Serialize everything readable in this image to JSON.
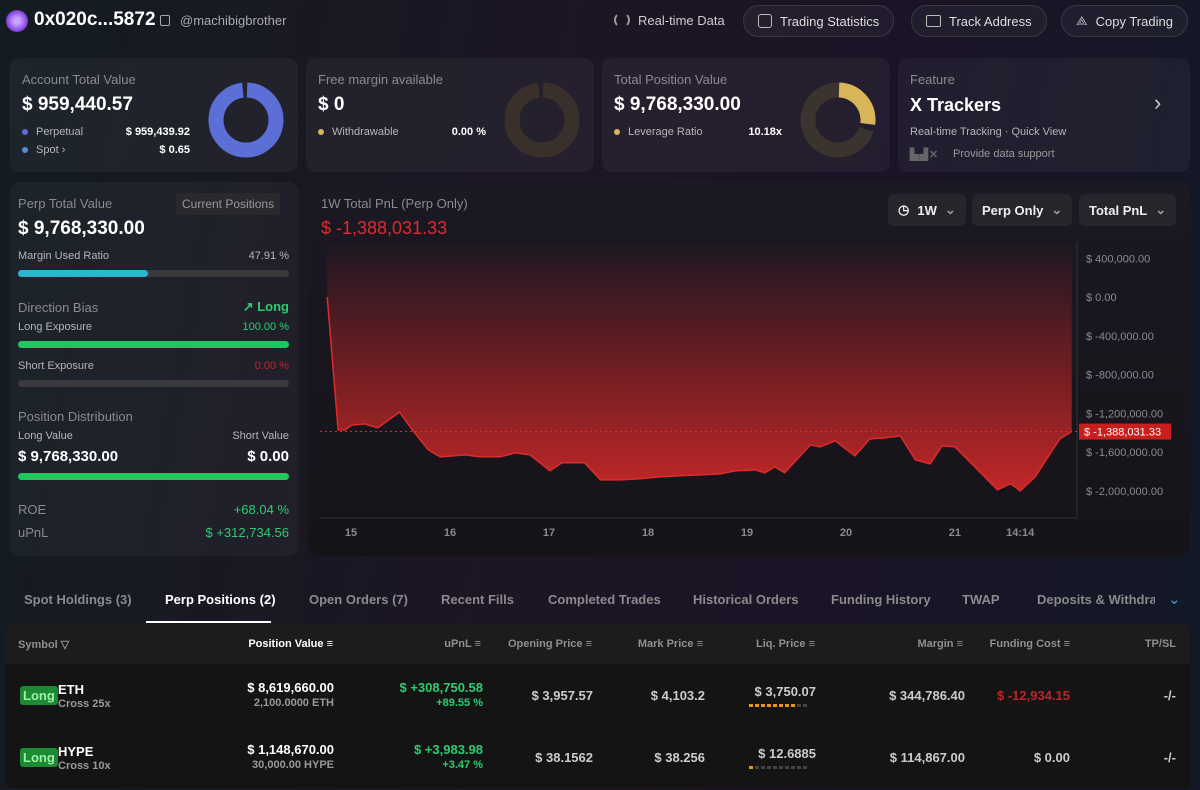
{
  "header": {
    "address": "0x020c...5872",
    "handle": "@machibigbrother",
    "buttons": [
      "Real-time Data",
      "Trading Statistics",
      "Track Address",
      "Copy Trading"
    ]
  },
  "cards": {
    "account": {
      "title": "Account Total Value",
      "value": "$ 959,440.57",
      "rows": [
        {
          "label": "Perpetual",
          "value": "$ 959,439.92",
          "color": "#5b6fd6"
        },
        {
          "label": "Spot",
          "value": "$ 0.65",
          "color": "#4f8fd6"
        }
      ]
    },
    "free_margin": {
      "title": "Free margin available",
      "value": "$ 0",
      "row_label": "Withdrawable",
      "row_value": "0.00 %",
      "color": "#d9b55a",
      "percent": 0
    },
    "position": {
      "title": "Total Position Value",
      "value": "$ 9,768,330.00",
      "row_label": "Leverage Ratio",
      "row_value": "10.18x",
      "color": "#d9b55a"
    },
    "feature": {
      "title": "Feature",
      "name": "X Trackers",
      "desc": "Real-time Tracking · Quick View",
      "support": "Provide data support",
      "logo": "bbx"
    }
  },
  "perp": {
    "title": "Perp Total Value",
    "button": "Current Positions",
    "value": "$ 9,768,330.00",
    "margin_label": "Margin Used Ratio",
    "margin_value": "47.91 %",
    "margin_pct": 47.91,
    "bias_label": "Direction Bias",
    "bias_value": "Long",
    "long_label": "Long Exposure",
    "long_value": "100.00 %",
    "long_pct": 100,
    "short_label": "Short Exposure",
    "short_value": "0.00 %",
    "short_pct": 0,
    "dist_label": "Position Distribution",
    "long_val_label": "Long Value",
    "short_val_label": "Short Value",
    "long_val": "$ 9,768,330.00",
    "short_val": "$ 0.00",
    "dist_long_pct": 100,
    "roe_label": "ROE",
    "roe": "+68.04 %",
    "upnl_label": "uPnL",
    "upnl": "$ +312,734.56"
  },
  "chart_panel": {
    "title": "1W Total PnL (Perp Only)",
    "value": "$ -1,388,031.33",
    "selects": [
      "1W",
      "Perp Only",
      "Total PnL"
    ]
  },
  "chart_data": {
    "type": "area",
    "color": "#e02a2a",
    "ylim": [
      -2250000,
      590000
    ],
    "xlim": [
      14.7,
      22.3
    ],
    "y_ticks": [
      {
        "v": 400000,
        "label": "$ 400,000.00"
      },
      {
        "v": 0,
        "label": "$ 0.00"
      },
      {
        "v": -400000,
        "label": "$ -400,000.00"
      },
      {
        "v": -800000,
        "label": "$ -800,000.00"
      },
      {
        "v": -1200000,
        "label": "$ -1,200,000.00"
      },
      {
        "v": -1600000,
        "label": "$ -1,600,000.00"
      },
      {
        "v": -2000000,
        "label": "$ -2,000,000.00"
      }
    ],
    "x_ticks": [
      {
        "v": 15,
        "label": "15"
      },
      {
        "v": 16,
        "label": "16"
      },
      {
        "v": 17,
        "label": "17"
      },
      {
        "v": 18,
        "label": "18"
      },
      {
        "v": 19,
        "label": "19"
      },
      {
        "v": 20,
        "label": "20"
      },
      {
        "v": 21.1,
        "label": "21"
      },
      {
        "v": 21.76,
        "label": "14:14"
      }
    ],
    "last_label": "$ -1,388,031.33",
    "last_value": -1388031.33,
    "x": [
      14.76,
      14.87,
      14.94,
      15.01,
      15.14,
      15.27,
      15.49,
      15.62,
      15.78,
      15.9,
      16.15,
      16.3,
      16.51,
      16.66,
      16.81,
      17.01,
      17.13,
      17.36,
      17.52,
      17.72,
      17.92,
      18.12,
      18.32,
      18.53,
      18.73,
      18.88,
      19.08,
      19.18,
      19.28,
      19.38,
      19.64,
      19.74,
      19.89,
      20.09,
      20.24,
      20.39,
      20.55,
      20.7,
      20.85,
      20.97,
      21.1,
      21.53,
      21.66,
      21.76,
      21.91,
      22.16,
      22.28
    ],
    "y": [
      0,
      -1371000,
      -1371000,
      -1320000,
      -1309000,
      -1350000,
      -1186000,
      -1371000,
      -1577000,
      -1649000,
      -1629000,
      -1649000,
      -1649000,
      -1608000,
      -1629000,
      -1794000,
      -1711000,
      -1711000,
      -1887000,
      -1887000,
      -1876000,
      -1856000,
      -1845000,
      -1835000,
      -1825000,
      -1794000,
      -1784000,
      -1814000,
      -1753000,
      -1814000,
      -1526000,
      -1546000,
      -1484000,
      -1639000,
      -1464000,
      -1454000,
      -1433000,
      -1680000,
      -1722000,
      -1536000,
      -1546000,
      -1990000,
      -1928000,
      -2000000,
      -1856000,
      -1464000,
      -1388031
    ]
  },
  "tabs": [
    "Spot Holdings (3)",
    "Perp Positions (2)",
    "Open Orders (7)",
    "Recent Fills",
    "Completed Trades",
    "Historical Orders",
    "Funding History",
    "TWAP",
    "Deposits & Withdraw"
  ],
  "active_tab": 1,
  "table": {
    "headers": [
      "Symbol",
      "Position Value",
      "uPnL",
      "Opening Price",
      "Mark Price",
      "Liq. Price",
      "Margin",
      "Funding Cost",
      "TP/SL"
    ],
    "rows": [
      {
        "side": "Long",
        "symbol": "ETH",
        "mode": "Cross 25x",
        "value": "$ 8,619,660.00",
        "size": "2,100.0000 ETH",
        "upnl": "$ +308,750.58",
        "upnl_pct": "+89.55 %",
        "open": "$ 3,957.57",
        "mark": "$ 4,103.2",
        "liq": "$ 3,750.07",
        "liq_risk": 8,
        "margin": "$ 344,786.40",
        "funding": "$ -12,934.15",
        "tpsl": "-/-"
      },
      {
        "side": "Long",
        "symbol": "HYPE",
        "mode": "Cross 10x",
        "value": "$ 1,148,670.00",
        "size": "30,000.00 HYPE",
        "upnl": "$ +3,983.98",
        "upnl_pct": "+3.47 %",
        "open": "$ 38.1562",
        "mark": "$ 38.256",
        "liq": "$ 12.6885",
        "liq_risk": 1,
        "margin": "$ 114,867.00",
        "funding": "$ 0.00",
        "tpsl": "-/-"
      }
    ]
  }
}
